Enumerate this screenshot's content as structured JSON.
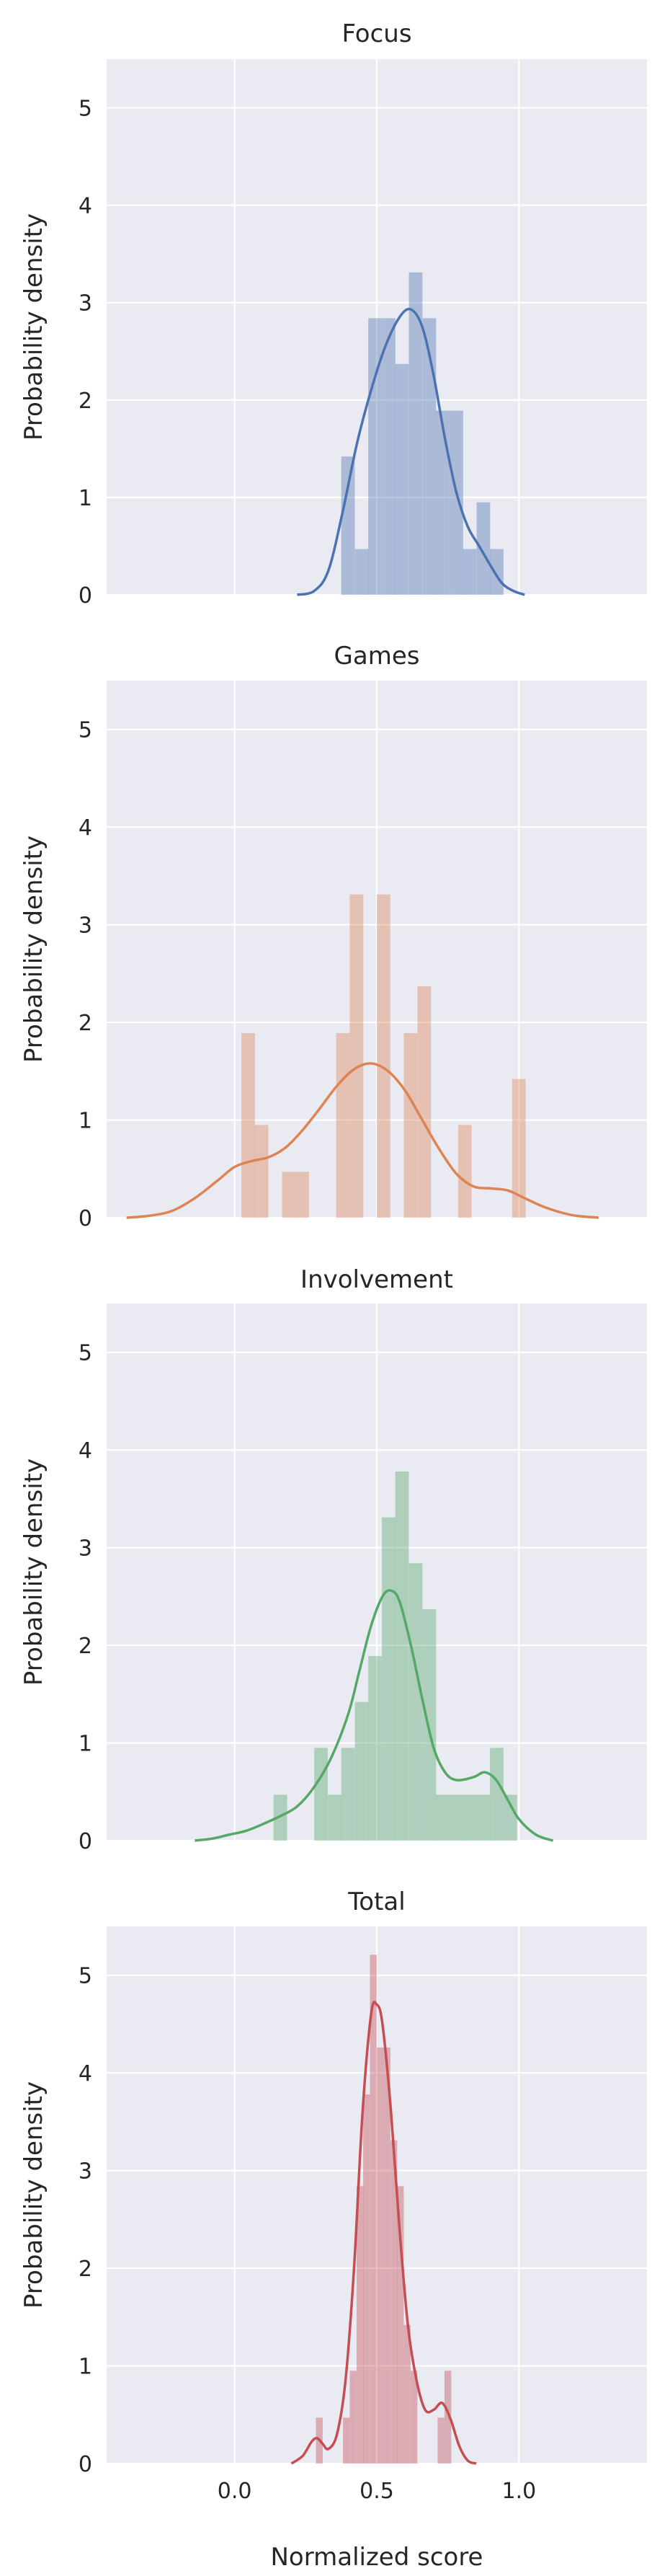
{
  "figure": {
    "xlabel": "Normalized score",
    "ylabel": "Probability density"
  },
  "chart_data": [
    {
      "type": "bar",
      "title": "Focus",
      "color": "#4c72b0",
      "xlim": [
        -0.45,
        1.45
      ],
      "ylim": [
        0,
        5.5
      ],
      "xticks": [
        "0.0",
        "0.5",
        "1.0"
      ],
      "yticks": [
        "0",
        "1",
        "2",
        "3",
        "4",
        "5"
      ],
      "bin_width": 0.0476,
      "bins": [
        {
          "x": 0.375,
          "density": 1.42
        },
        {
          "x": 0.423,
          "density": 0.47
        },
        {
          "x": 0.47,
          "density": 2.84
        },
        {
          "x": 0.518,
          "density": 2.84
        },
        {
          "x": 0.565,
          "density": 2.37
        },
        {
          "x": 0.613,
          "density": 3.31
        },
        {
          "x": 0.661,
          "density": 2.84
        },
        {
          "x": 0.708,
          "density": 1.89
        },
        {
          "x": 0.756,
          "density": 1.89
        },
        {
          "x": 0.803,
          "density": 0.47
        },
        {
          "x": 0.851,
          "density": 0.95
        },
        {
          "x": 0.898,
          "density": 0.47
        }
      ],
      "kde": [
        [
          0.22,
          0.0
        ],
        [
          0.28,
          0.04
        ],
        [
          0.33,
          0.25
        ],
        [
          0.38,
          0.85
        ],
        [
          0.43,
          1.55
        ],
        [
          0.48,
          2.1
        ],
        [
          0.53,
          2.55
        ],
        [
          0.58,
          2.85
        ],
        [
          0.62,
          2.93
        ],
        [
          0.66,
          2.75
        ],
        [
          0.7,
          2.25
        ],
        [
          0.74,
          1.6
        ],
        [
          0.78,
          1.05
        ],
        [
          0.82,
          0.7
        ],
        [
          0.86,
          0.5
        ],
        [
          0.9,
          0.3
        ],
        [
          0.94,
          0.12
        ],
        [
          0.98,
          0.04
        ],
        [
          1.02,
          0.0
        ]
      ]
    },
    {
      "type": "bar",
      "title": "Games",
      "color": "#dd8452",
      "xlim": [
        -0.45,
        1.45
      ],
      "ylim": [
        0,
        5.5
      ],
      "xticks": [
        "0.0",
        "0.5",
        "1.0"
      ],
      "yticks": [
        "0",
        "1",
        "2",
        "3",
        "4",
        "5"
      ],
      "bin_width": 0.0476,
      "bins": [
        {
          "x": 0.024,
          "density": 1.89
        },
        {
          "x": 0.071,
          "density": 0.95
        },
        {
          "x": 0.119,
          "density": 0.0
        },
        {
          "x": 0.167,
          "density": 0.47
        },
        {
          "x": 0.214,
          "density": 0.47
        },
        {
          "x": 0.262,
          "density": 0.0
        },
        {
          "x": 0.31,
          "density": 0.0
        },
        {
          "x": 0.357,
          "density": 1.89
        },
        {
          "x": 0.405,
          "density": 3.31
        },
        {
          "x": 0.452,
          "density": 0.0
        },
        {
          "x": 0.5,
          "density": 3.31
        },
        {
          "x": 0.548,
          "density": 0.0
        },
        {
          "x": 0.595,
          "density": 1.89
        },
        {
          "x": 0.643,
          "density": 2.37
        },
        {
          "x": 0.69,
          "density": 0.0
        },
        {
          "x": 0.738,
          "density": 0.0
        },
        {
          "x": 0.786,
          "density": 0.95
        },
        {
          "x": 0.833,
          "density": 0.0
        },
        {
          "x": 0.881,
          "density": 0.0
        },
        {
          "x": 0.929,
          "density": 0.0
        },
        {
          "x": 0.976,
          "density": 1.42
        }
      ],
      "kde": [
        [
          -0.38,
          0.0
        ],
        [
          -0.3,
          0.02
        ],
        [
          -0.22,
          0.07
        ],
        [
          -0.14,
          0.2
        ],
        [
          -0.06,
          0.38
        ],
        [
          0.0,
          0.52
        ],
        [
          0.06,
          0.58
        ],
        [
          0.12,
          0.62
        ],
        [
          0.18,
          0.72
        ],
        [
          0.24,
          0.9
        ],
        [
          0.3,
          1.12
        ],
        [
          0.36,
          1.35
        ],
        [
          0.42,
          1.52
        ],
        [
          0.48,
          1.58
        ],
        [
          0.54,
          1.5
        ],
        [
          0.6,
          1.3
        ],
        [
          0.66,
          1.0
        ],
        [
          0.72,
          0.7
        ],
        [
          0.78,
          0.45
        ],
        [
          0.84,
          0.32
        ],
        [
          0.9,
          0.3
        ],
        [
          0.96,
          0.28
        ],
        [
          1.02,
          0.2
        ],
        [
          1.08,
          0.12
        ],
        [
          1.14,
          0.06
        ],
        [
          1.2,
          0.02
        ],
        [
          1.28,
          0.0
        ]
      ]
    },
    {
      "type": "bar",
      "title": "Involvement",
      "color": "#55a868",
      "xlim": [
        -0.45,
        1.45
      ],
      "ylim": [
        0,
        5.5
      ],
      "xticks": [
        "0.0",
        "0.5",
        "1.0"
      ],
      "yticks": [
        "0",
        "1",
        "2",
        "3",
        "4",
        "5"
      ],
      "bin_width": 0.0476,
      "bins": [
        {
          "x": 0.137,
          "density": 0.47
        },
        {
          "x": 0.185,
          "density": 0.0
        },
        {
          "x": 0.232,
          "density": 0.0
        },
        {
          "x": 0.28,
          "density": 0.95
        },
        {
          "x": 0.328,
          "density": 0.47
        },
        {
          "x": 0.375,
          "density": 0.95
        },
        {
          "x": 0.423,
          "density": 1.42
        },
        {
          "x": 0.47,
          "density": 1.89
        },
        {
          "x": 0.518,
          "density": 3.31
        },
        {
          "x": 0.565,
          "density": 3.78
        },
        {
          "x": 0.613,
          "density": 2.84
        },
        {
          "x": 0.661,
          "density": 2.37
        },
        {
          "x": 0.708,
          "density": 0.47
        },
        {
          "x": 0.756,
          "density": 0.47
        },
        {
          "x": 0.803,
          "density": 0.47
        },
        {
          "x": 0.851,
          "density": 0.47
        },
        {
          "x": 0.898,
          "density": 0.95
        },
        {
          "x": 0.946,
          "density": 0.47
        }
      ],
      "kde": [
        [
          -0.14,
          0.0
        ],
        [
          -0.08,
          0.02
        ],
        [
          -0.02,
          0.06
        ],
        [
          0.04,
          0.1
        ],
        [
          0.1,
          0.17
        ],
        [
          0.16,
          0.25
        ],
        [
          0.22,
          0.35
        ],
        [
          0.28,
          0.55
        ],
        [
          0.34,
          0.85
        ],
        [
          0.4,
          1.3
        ],
        [
          0.44,
          1.75
        ],
        [
          0.48,
          2.2
        ],
        [
          0.52,
          2.5
        ],
        [
          0.55,
          2.56
        ],
        [
          0.58,
          2.45
        ],
        [
          0.62,
          2.0
        ],
        [
          0.66,
          1.45
        ],
        [
          0.7,
          0.95
        ],
        [
          0.74,
          0.7
        ],
        [
          0.78,
          0.62
        ],
        [
          0.84,
          0.65
        ],
        [
          0.88,
          0.7
        ],
        [
          0.92,
          0.62
        ],
        [
          0.96,
          0.42
        ],
        [
          1.0,
          0.22
        ],
        [
          1.06,
          0.06
        ],
        [
          1.12,
          0.0
        ]
      ]
    },
    {
      "type": "bar",
      "title": "Total",
      "color": "#c44e52",
      "xlim": [
        -0.45,
        1.45
      ],
      "ylim": [
        0,
        5.5
      ],
      "xticks": [
        "0.0",
        "0.5",
        "1.0"
      ],
      "yticks": [
        "0",
        "1",
        "2",
        "3",
        "4",
        "5"
      ],
      "bin_width": 0.0238,
      "bins": [
        {
          "x": 0.286,
          "density": 0.47
        },
        {
          "x": 0.31,
          "density": 0.0
        },
        {
          "x": 0.333,
          "density": 0.0
        },
        {
          "x": 0.357,
          "density": 0.0
        },
        {
          "x": 0.381,
          "density": 0.47
        },
        {
          "x": 0.405,
          "density": 0.95
        },
        {
          "x": 0.429,
          "density": 2.84
        },
        {
          "x": 0.452,
          "density": 3.78
        },
        {
          "x": 0.476,
          "density": 5.21
        },
        {
          "x": 0.5,
          "density": 4.26
        },
        {
          "x": 0.524,
          "density": 4.26
        },
        {
          "x": 0.548,
          "density": 3.31
        },
        {
          "x": 0.571,
          "density": 2.84
        },
        {
          "x": 0.595,
          "density": 1.42
        },
        {
          "x": 0.619,
          "density": 0.95
        },
        {
          "x": 0.643,
          "density": 0.0
        },
        {
          "x": 0.667,
          "density": 0.0
        },
        {
          "x": 0.69,
          "density": 0.0
        },
        {
          "x": 0.714,
          "density": 0.47
        },
        {
          "x": 0.738,
          "density": 0.95
        }
      ],
      "kde": [
        [
          0.2,
          0.0
        ],
        [
          0.24,
          0.08
        ],
        [
          0.27,
          0.22
        ],
        [
          0.29,
          0.26
        ],
        [
          0.31,
          0.2
        ],
        [
          0.33,
          0.15
        ],
        [
          0.36,
          0.3
        ],
        [
          0.39,
          0.85
        ],
        [
          0.42,
          2.0
        ],
        [
          0.45,
          3.6
        ],
        [
          0.48,
          4.6
        ],
        [
          0.5,
          4.7
        ],
        [
          0.52,
          4.5
        ],
        [
          0.55,
          3.6
        ],
        [
          0.58,
          2.4
        ],
        [
          0.61,
          1.4
        ],
        [
          0.64,
          0.85
        ],
        [
          0.67,
          0.55
        ],
        [
          0.7,
          0.55
        ],
        [
          0.73,
          0.62
        ],
        [
          0.76,
          0.45
        ],
        [
          0.79,
          0.18
        ],
        [
          0.82,
          0.03
        ],
        [
          0.85,
          0.0
        ]
      ]
    }
  ]
}
